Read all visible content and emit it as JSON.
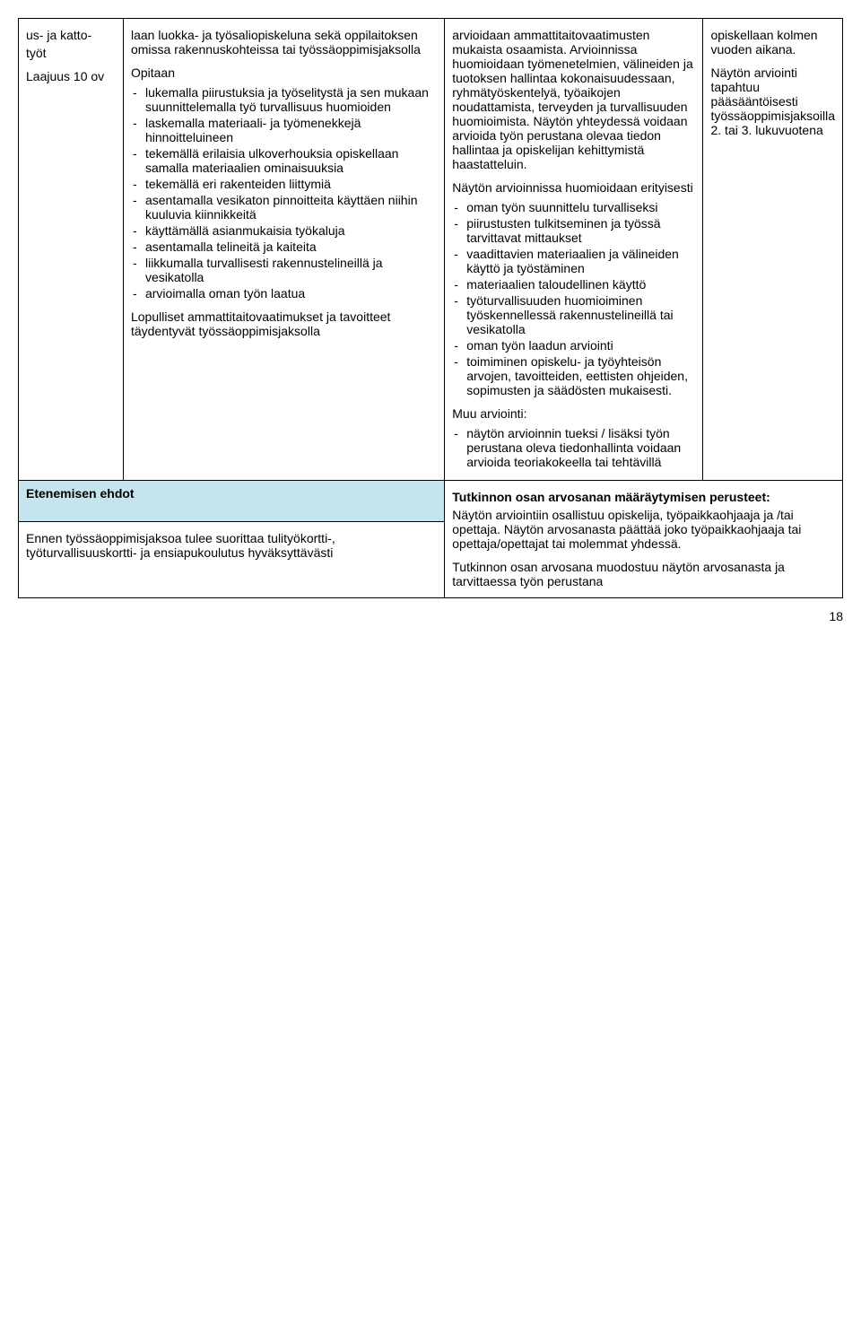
{
  "col1": {
    "line1": "us- ja katto-",
    "line2": "työt",
    "line3": "Laajuus 10 ov"
  },
  "col2": {
    "intro": "laan luokka- ja työsaliopiskeluna sekä oppilaitoksen omissa rakennuskohteissa tai työssäoppimisjaksolla",
    "opitaan": "Opitaan",
    "opitaan_items": [
      "lukemalla piirustuksia ja työselitystä ja sen mukaan suunnittelemalla työ turvallisuus huomioiden",
      "laskemalla materiaali- ja työmenekkejä hinnoitteluineen",
      "tekemällä erilaisia ulkoverhouksia opiskellaan samalla materiaalien ominaisuuksia",
      "tekemällä eri rakenteiden liittymiä",
      "asentamalla vesikaton pinnoitteita käyttäen niihin kuuluvia kiinnikkeitä",
      "käyttämällä asianmukaisia työkaluja",
      "asentamalla telineitä ja kaiteita",
      "liikkumalla turvallisesti rakennustelineillä ja vesikatolla",
      "arvioimalla oman työn laatua"
    ],
    "closing": "Lopulliset ammattitaitovaatimukset ja tavoitteet täydentyvät työssäoppimisjaksolla"
  },
  "col3": {
    "p1": "arvioidaan ammattitaitovaatimusten mukaista osaamista. Arvioinnissa huomioidaan työmenetelmien, välineiden ja tuotoksen hallintaa kokonaisuudessaan, ryhmätyöskentelyä, työaikojen noudattamista, terveyden ja turvallisuuden huomioimista. Näytön yhteydessä voidaan arvioida työn perustana olevaa tiedon hallintaa ja opiskelijan kehittymistä haastatteluin.",
    "list_title": "Näytön arvioinnissa huomioidaan erityisesti",
    "list_items": [
      "oman työn suunnittelu turvalliseksi",
      "piirustusten tulkitseminen ja työssä tarvittavat mittaukset",
      "vaadittavien materiaalien ja välineiden käyttö ja työstäminen",
      "materiaalien taloudellinen käyttö",
      "työturvallisuuden huomioiminen työskennellessä rakennustelineillä tai vesikatolla",
      "oman työn laadun arviointi",
      "toimiminen opiskelu- ja työyhteisön arvojen, tavoitteiden, eettisten ohjeiden, sopimusten ja säädösten mukaisesti."
    ],
    "muu_title": "Muu arviointi:",
    "muu_items": [
      "näytön arvioinnin tueksi / lisäksi työn perustana oleva tiedonhallinta voidaan arvioida teoriakokeella tai tehtävillä"
    ]
  },
  "col4": {
    "p1": "opiskellaan kolmen vuoden aikana.",
    "p2": "Näytön arviointi tapahtuu pääsääntöisesti työssäoppimisjaksoilla 2. tai 3. lukuvuotena"
  },
  "row2": {
    "left_header": "Etenemisen ehdot",
    "left_body": "Ennen työssäoppimisjaksoa tulee suorittaa tulityökortti-, työturvallisuuskortti- ja ensiapukoulutus hyväksyttävästi",
    "right_header": "Tutkinnon osan arvosanan määräytymisen perusteet:",
    "right_p1": "Näytön arviointiin osallistuu opiskelija, työpaikkaohjaaja ja /tai opettaja. Näytön arvosanasta päättää joko työpaikkaohjaaja tai opettaja/opettajat tai molemmat yhdessä.",
    "right_p2": "Tutkinnon osan arvosana muodostuu näytön arvosanasta ja tarvittaessa työn perustana"
  },
  "page_number": "18"
}
